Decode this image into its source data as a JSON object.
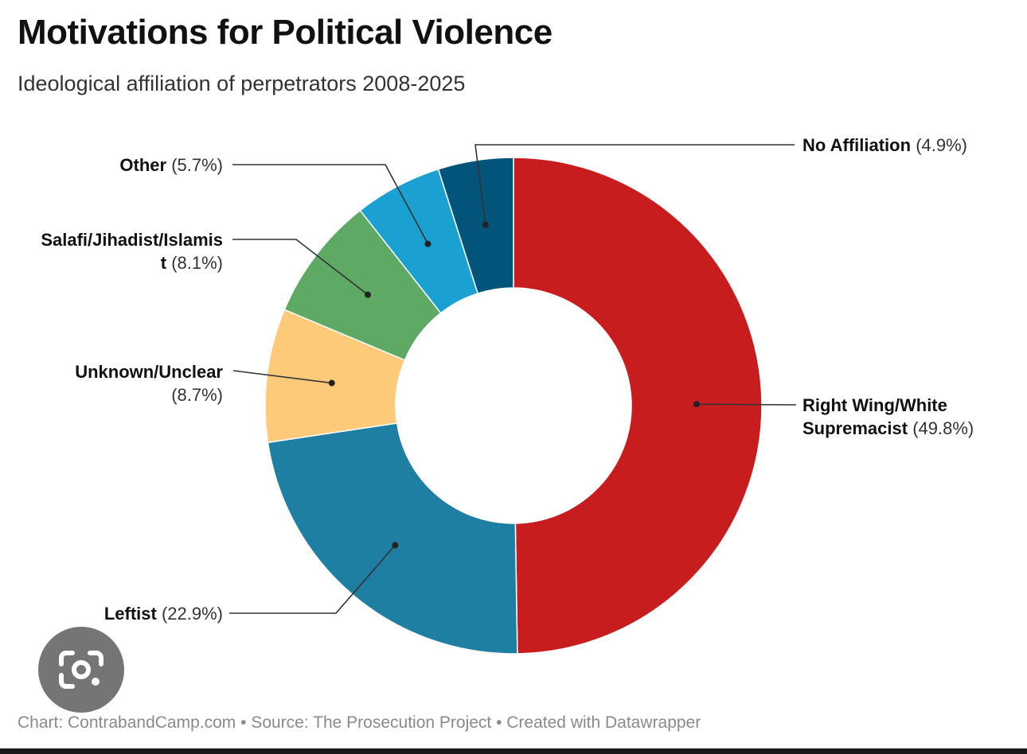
{
  "title": "Motivations for Political Violence",
  "subtitle": "Ideological affiliation of perpetrators 2008-2025",
  "footer": "Chart: ContrabandCamp.com • Source: The Prosecution Project • Created with Datawrapper",
  "chart_data": {
    "type": "pie",
    "variant": "donut",
    "title": "Motivations for Political Violence",
    "subtitle": "Ideological affiliation of perpetrators 2008-2025",
    "unit": "%",
    "slices": [
      {
        "name_line1": "Right Wing/White",
        "name_line2": "Supremacist",
        "pct_label": "(49.8%)",
        "value": 49.8,
        "color": "#c81d1e"
      },
      {
        "name_line1": "Leftist",
        "name_line2": "",
        "pct_label": "(22.9%)",
        "value": 22.9,
        "color": "#1f7fa3"
      },
      {
        "name_line1": "Unknown/Unclear",
        "name_line2": "",
        "pct_label": "(8.7%)",
        "value": 8.7,
        "color": "#fdca79"
      },
      {
        "name_line1": "Salafi/Jihadist/Islamis",
        "name_line2": "t",
        "pct_label": "(8.1%)",
        "value": 8.1,
        "color": "#5ea964"
      },
      {
        "name_line1": "Other",
        "name_line2": "",
        "pct_label": "(5.7%)",
        "value": 5.7,
        "color": "#1ba1d1"
      },
      {
        "name_line1": "No Affiliation",
        "name_line2": "",
        "pct_label": "(4.9%)",
        "value": 4.9,
        "color": "#03547a"
      }
    ],
    "start_angle_deg": 0,
    "direction": "clockwise"
  },
  "overlay": {
    "icon": "google-lens-icon"
  }
}
